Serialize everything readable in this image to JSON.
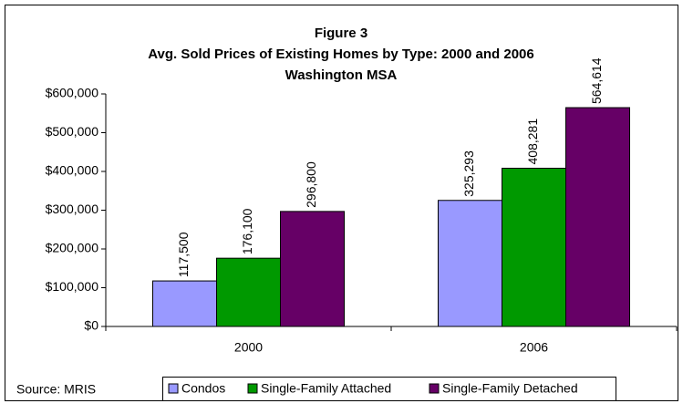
{
  "chart_data": {
    "type": "bar",
    "title": [
      "Figure 3",
      "Avg. Sold Prices of Existing Homes by Type: 2000 and 2006",
      "Washington MSA"
    ],
    "source": "Source: MRIS",
    "categories": [
      "2000",
      "2006"
    ],
    "series": [
      {
        "name": "Condos",
        "color": "#9999ff",
        "values": [
          117500,
          325293
        ],
        "value_labels": [
          "117,500",
          "325,293"
        ]
      },
      {
        "name": "Single-Family Attached",
        "color": "#009900",
        "values": [
          176100,
          408281
        ],
        "value_labels": [
          "176,100",
          "408,281"
        ]
      },
      {
        "name": "Single-Family Detached",
        "color": "#660066",
        "values": [
          296800,
          564614
        ],
        "value_labels": [
          "296,800",
          "564,614"
        ]
      }
    ],
    "ylim": [
      0,
      600000
    ],
    "yticks": [
      {
        "value": 0,
        "label": "$0"
      },
      {
        "value": 100000,
        "label": "$100,000"
      },
      {
        "value": 200000,
        "label": "$200,000"
      },
      {
        "value": 300000,
        "label": "$300,000"
      },
      {
        "value": 400000,
        "label": "$400,000"
      },
      {
        "value": 500000,
        "label": "$500,000"
      },
      {
        "value": 600000,
        "label": "$600,000"
      }
    ],
    "grid": false,
    "legend": "bottom"
  }
}
